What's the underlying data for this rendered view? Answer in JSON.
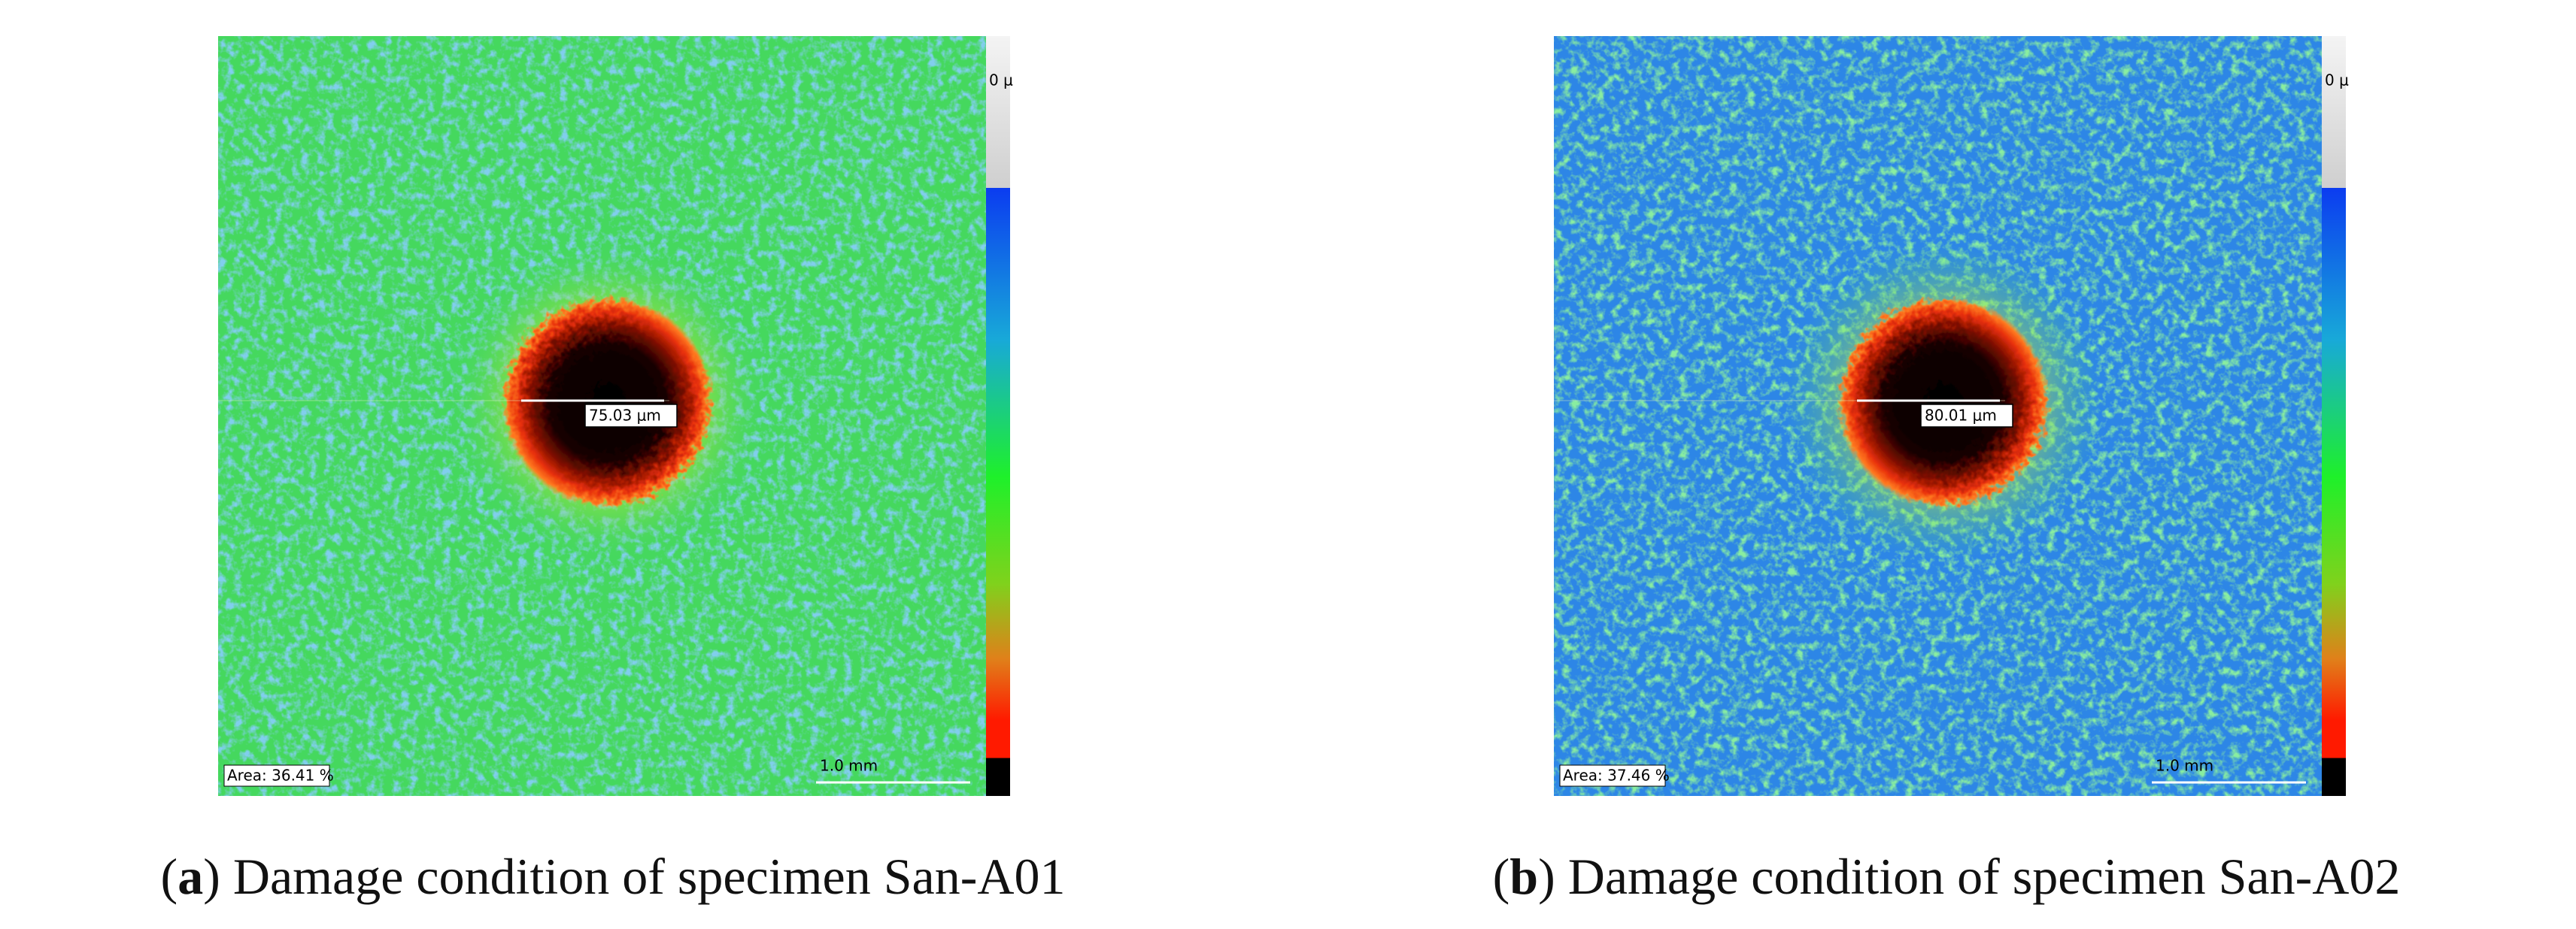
{
  "panels": [
    {
      "open": "(",
      "label": "a",
      "caption": ") Damage condition of specimen San-A01",
      "measurement": "75.03 μm",
      "area": "Area: 36.41 %",
      "scale": "1.0 mm",
      "colorbar_label": "0 μ"
    },
    {
      "open": "(",
      "label": "b",
      "caption": ") Damage condition of specimen San-A02",
      "measurement": "80.01 μm",
      "area": "Area: 37.46 %",
      "scale": "1.0 mm",
      "colorbar_label": "0 μ"
    }
  ]
}
